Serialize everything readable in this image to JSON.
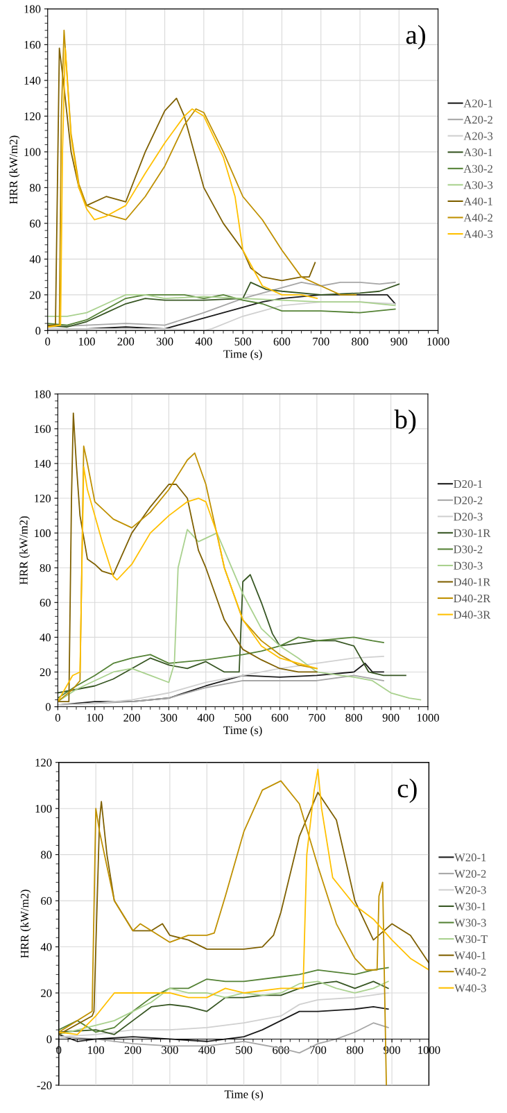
{
  "chart_data": [
    {
      "type": "line",
      "xlabel": "Time (s)",
      "ylabel": "HRR (kW/m2)",
      "annotations": [
        "a)"
      ],
      "xlim": [
        0,
        1000
      ],
      "ylim": [
        0,
        180
      ],
      "xticks": [
        0,
        100,
        200,
        300,
        400,
        500,
        600,
        700,
        800,
        900,
        1000
      ],
      "yticks": [
        0,
        20,
        40,
        60,
        80,
        100,
        120,
        140,
        160,
        180
      ],
      "grid": true,
      "legend": "right",
      "series": [
        {
          "name": "A20-1",
          "color": "#1a1a1a",
          "x": [
            0,
            100,
            200,
            300,
            350,
            400,
            450,
            500,
            550,
            600,
            700,
            800,
            870,
            890
          ],
          "values": [
            1,
            1,
            2,
            1,
            4,
            7,
            10,
            13,
            16,
            18,
            20,
            20,
            20,
            15
          ]
        },
        {
          "name": "A20-2",
          "color": "#a6a6a6",
          "x": [
            0,
            100,
            200,
            300,
            400,
            500,
            600,
            650,
            700,
            750,
            800,
            850,
            890
          ],
          "values": [
            2,
            3,
            4,
            3,
            10,
            18,
            24,
            27,
            25,
            27,
            27,
            26,
            27
          ]
        },
        {
          "name": "A20-3",
          "color": "#d0d0d0",
          "x": [
            0,
            300,
            400,
            420,
            500,
            600,
            700,
            800,
            890
          ],
          "values": [
            1,
            1,
            0,
            1,
            8,
            14,
            16,
            16,
            15
          ]
        },
        {
          "name": "A30-1",
          "color": "#375623",
          "x": [
            0,
            50,
            100,
            150,
            200,
            250,
            300,
            400,
            500,
            520,
            560,
            600,
            700,
            800,
            850,
            900
          ],
          "values": [
            3,
            2,
            5,
            10,
            15,
            18,
            17,
            17,
            18,
            27,
            23,
            22,
            20,
            21,
            22,
            26
          ]
        },
        {
          "name": "A30-2",
          "color": "#548235",
          "x": [
            0,
            50,
            100,
            150,
            200,
            250,
            300,
            350,
            400,
            450,
            500,
            550,
            600,
            700,
            800,
            890
          ],
          "values": [
            4,
            3,
            6,
            12,
            18,
            20,
            20,
            20,
            18,
            20,
            17,
            15,
            11,
            11,
            10,
            12
          ]
        },
        {
          "name": "A30-3",
          "color": "#a9d18e",
          "x": [
            0,
            50,
            100,
            150,
            200,
            250,
            300,
            400,
            500,
            600,
            700,
            800,
            890
          ],
          "values": [
            8,
            8,
            10,
            15,
            20,
            20,
            18,
            19,
            18,
            17,
            16,
            16,
            14
          ]
        },
        {
          "name": "A40-1",
          "color": "#7f6000",
          "x": [
            0,
            20,
            30,
            40,
            60,
            80,
            100,
            150,
            200,
            250,
            300,
            330,
            350,
            400,
            450,
            500,
            520,
            550,
            600,
            650,
            670,
            685
          ],
          "values": [
            3,
            3,
            158,
            140,
            100,
            80,
            70,
            75,
            72,
            100,
            123,
            130,
            120,
            80,
            60,
            45,
            35,
            30,
            28,
            30,
            30,
            38
          ]
        },
        {
          "name": "A40-2",
          "color": "#bf9000",
          "x": [
            0,
            30,
            35,
            42,
            60,
            80,
            100,
            150,
            200,
            250,
            300,
            350,
            380,
            400,
            450,
            500,
            550,
            600,
            650,
            700,
            750,
            790
          ],
          "values": [
            2,
            3,
            120,
            168,
            110,
            82,
            70,
            65,
            62,
            75,
            92,
            115,
            124,
            122,
            100,
            75,
            62,
            45,
            30,
            25,
            20,
            20
          ]
        },
        {
          "name": "A40-3",
          "color": "#ffc000",
          "x": [
            0,
            33,
            38,
            45,
            60,
            80,
            100,
            120,
            150,
            200,
            250,
            300,
            350,
            370,
            400,
            450,
            480,
            500,
            550,
            600,
            650,
            690
          ],
          "values": [
            2,
            3,
            100,
            158,
            108,
            80,
            68,
            62,
            64,
            70,
            88,
            105,
            120,
            124,
            120,
            97,
            75,
            45,
            25,
            20,
            20,
            18
          ]
        }
      ]
    },
    {
      "type": "line",
      "xlabel": "Time (s)",
      "ylabel": "HRR (kW/m2)",
      "annotations": [
        "b)"
      ],
      "xlim": [
        0,
        1000
      ],
      "ylim": [
        0,
        180
      ],
      "xticks": [
        0,
        100,
        200,
        300,
        400,
        500,
        600,
        700,
        800,
        900,
        1000
      ],
      "yticks": [
        0,
        20,
        40,
        60,
        80,
        100,
        120,
        140,
        160,
        180
      ],
      "grid": true,
      "legend": "right",
      "series": [
        {
          "name": "D20-1",
          "color": "#1a1a1a",
          "x": [
            0,
            100,
            200,
            300,
            400,
            500,
            600,
            700,
            800,
            830,
            850,
            880
          ],
          "values": [
            1,
            3,
            3,
            5,
            12,
            18,
            17,
            18,
            20,
            25,
            20,
            20
          ]
        },
        {
          "name": "D20-2",
          "color": "#a6a6a6",
          "x": [
            0,
            100,
            200,
            300,
            400,
            500,
            600,
            700,
            800,
            880
          ],
          "values": [
            1,
            2,
            3,
            5,
            11,
            15,
            15,
            15,
            18,
            15
          ]
        },
        {
          "name": "D20-3",
          "color": "#d0d0d0",
          "x": [
            0,
            100,
            200,
            300,
            400,
            500,
            600,
            700,
            800,
            880
          ],
          "values": [
            1,
            2,
            4,
            8,
            14,
            18,
            22,
            25,
            28,
            29
          ]
        },
        {
          "name": "D30-1R",
          "color": "#375623",
          "x": [
            0,
            50,
            100,
            150,
            200,
            250,
            300,
            350,
            400,
            450,
            490,
            500,
            520,
            550,
            580,
            600,
            700,
            750,
            800,
            840,
            880,
            940
          ],
          "values": [
            8,
            10,
            12,
            16,
            22,
            28,
            24,
            22,
            26,
            20,
            20,
            72,
            76,
            60,
            42,
            35,
            38,
            38,
            35,
            20,
            18,
            18
          ]
        },
        {
          "name": "D30-2",
          "color": "#548235",
          "x": [
            0,
            50,
            100,
            150,
            200,
            250,
            300,
            400,
            500,
            550,
            600,
            650,
            700,
            800,
            850,
            880
          ],
          "values": [
            5,
            12,
            18,
            25,
            28,
            30,
            25,
            27,
            30,
            32,
            35,
            40,
            38,
            40,
            38,
            37
          ]
        },
        {
          "name": "D30-3",
          "color": "#a9d18e",
          "x": [
            0,
            50,
            100,
            150,
            200,
            250,
            300,
            315,
            325,
            350,
            380,
            400,
            430,
            450,
            500,
            550,
            600,
            650,
            700,
            800,
            850,
            900,
            950,
            980
          ],
          "values": [
            3,
            10,
            15,
            20,
            22,
            18,
            14,
            25,
            80,
            102,
            95,
            97,
            100,
            90,
            65,
            45,
            35,
            28,
            20,
            17,
            15,
            8,
            5,
            4
          ]
        },
        {
          "name": "D40-1R",
          "color": "#7f6000",
          "x": [
            0,
            30,
            37,
            42,
            50,
            60,
            80,
            100,
            120,
            150,
            200,
            250,
            300,
            320,
            350,
            380,
            400,
            450,
            500,
            550,
            600,
            650,
            700
          ],
          "values": [
            3,
            3,
            120,
            169,
            140,
            110,
            85,
            82,
            78,
            76,
            100,
            115,
            128,
            128,
            120,
            90,
            80,
            50,
            33,
            27,
            22,
            20,
            20
          ]
        },
        {
          "name": "D40-2R",
          "color": "#bf9000",
          "x": [
            0,
            40,
            60,
            70,
            80,
            100,
            150,
            200,
            250,
            300,
            350,
            370,
            400,
            450,
            500,
            550,
            600,
            650,
            700
          ],
          "values": [
            3,
            10,
            15,
            150,
            140,
            118,
            108,
            103,
            112,
            125,
            142,
            146,
            128,
            80,
            50,
            38,
            30,
            24,
            22
          ]
        },
        {
          "name": "D40-3R",
          "color": "#ffc000",
          "x": [
            0,
            40,
            60,
            70,
            80,
            100,
            120,
            150,
            160,
            200,
            250,
            300,
            350,
            380,
            400,
            430,
            450,
            500,
            550,
            600,
            650,
            700
          ],
          "values": [
            3,
            18,
            20,
            138,
            125,
            110,
            95,
            75,
            73,
            82,
            100,
            110,
            118,
            120,
            118,
            100,
            80,
            50,
            35,
            28,
            25,
            22
          ]
        }
      ]
    },
    {
      "type": "line",
      "xlabel": "Time (s)",
      "ylabel": "HRR (kW/m2)",
      "annotations": [
        "c)"
      ],
      "xlim": [
        0,
        1000
      ],
      "ylim": [
        -20,
        120
      ],
      "xticks": [
        0,
        100,
        200,
        300,
        400,
        500,
        600,
        700,
        800,
        900,
        1000
      ],
      "yticks": [
        -20,
        0,
        20,
        40,
        60,
        80,
        100,
        120
      ],
      "grid": true,
      "legend": "right",
      "series": [
        {
          "name": "W20-1",
          "color": "#1a1a1a",
          "x": [
            0,
            50,
            100,
            200,
            300,
            400,
            500,
            550,
            600,
            650,
            700,
            800,
            850,
            890
          ],
          "values": [
            2,
            -1,
            0,
            1,
            0,
            -1,
            1,
            4,
            8,
            12,
            12,
            13,
            14,
            13
          ]
        },
        {
          "name": "W20-2",
          "color": "#a6a6a6",
          "x": [
            0,
            100,
            200,
            300,
            400,
            500,
            600,
            650,
            700,
            750,
            800,
            850,
            890
          ],
          "values": [
            1,
            0,
            -2,
            -3,
            -3,
            -1,
            -4,
            -6,
            -2,
            0,
            3,
            7,
            5
          ]
        },
        {
          "name": "W20-3",
          "color": "#d0d0d0",
          "x": [
            0,
            100,
            200,
            300,
            400,
            500,
            600,
            650,
            700,
            800,
            890
          ],
          "values": [
            1,
            2,
            4,
            4,
            5,
            7,
            10,
            15,
            17,
            18,
            20
          ]
        },
        {
          "name": "W30-1",
          "color": "#375623",
          "x": [
            0,
            100,
            150,
            200,
            250,
            300,
            350,
            400,
            450,
            500,
            550,
            600,
            650,
            700,
            750,
            800,
            850,
            890
          ],
          "values": [
            3,
            4,
            2,
            8,
            14,
            15,
            14,
            12,
            18,
            18,
            19,
            19,
            22,
            24,
            25,
            22,
            25,
            22
          ]
        },
        {
          "name": "W30-3",
          "color": "#548235",
          "x": [
            0,
            50,
            100,
            150,
            200,
            250,
            300,
            350,
            400,
            450,
            500,
            600,
            650,
            700,
            750,
            800,
            850,
            890
          ],
          "values": [
            4,
            8,
            3,
            5,
            12,
            18,
            22,
            22,
            26,
            25,
            25,
            27,
            28,
            30,
            29,
            28,
            30,
            31
          ]
        },
        {
          "name": "W30-T",
          "color": "#a9d18e",
          "x": [
            0,
            100,
            150,
            200,
            250,
            300,
            350,
            400,
            450,
            500,
            550,
            600,
            650,
            700,
            750,
            800,
            850,
            890
          ],
          "values": [
            2,
            6,
            8,
            12,
            16,
            22,
            20,
            20,
            18,
            20,
            19,
            20,
            24,
            25,
            22,
            20,
            22,
            25
          ]
        },
        {
          "name": "W40-1",
          "color": "#7f6000",
          "x": [
            0,
            90,
            95,
            110,
            115,
            130,
            150,
            200,
            250,
            280,
            300,
            350,
            400,
            450,
            500,
            550,
            580,
            600,
            650,
            700,
            750,
            800,
            850,
            900,
            950,
            1000
          ],
          "values": [
            2,
            10,
            12,
            95,
            103,
            80,
            60,
            47,
            47,
            50,
            45,
            43,
            39,
            39,
            39,
            40,
            45,
            55,
            88,
            107,
            95,
            60,
            43,
            50,
            45,
            33
          ]
        },
        {
          "name": "W40-2",
          "color": "#bf9000",
          "x": [
            0,
            90,
            100,
            110,
            130,
            150,
            200,
            220,
            250,
            300,
            350,
            400,
            420,
            450,
            500,
            550,
            600,
            650,
            700,
            750,
            800,
            830,
            860,
            865,
            875,
            885
          ],
          "values": [
            3,
            12,
            100,
            90,
            75,
            60,
            47,
            50,
            47,
            42,
            45,
            45,
            46,
            62,
            90,
            108,
            112,
            102,
            75,
            50,
            35,
            30,
            30,
            62,
            68,
            -20
          ]
        },
        {
          "name": "W40-3",
          "color": "#ffc000",
          "x": [
            0,
            50,
            100,
            150,
            200,
            250,
            300,
            350,
            400,
            450,
            500,
            600,
            660,
            670,
            690,
            700,
            710,
            740,
            800,
            850,
            900,
            950,
            1000
          ],
          "values": [
            3,
            2,
            10,
            20,
            20,
            20,
            20,
            18,
            18,
            22,
            20,
            22,
            22,
            80,
            108,
            117,
            100,
            70,
            58,
            52,
            43,
            35,
            30
          ]
        }
      ]
    }
  ]
}
